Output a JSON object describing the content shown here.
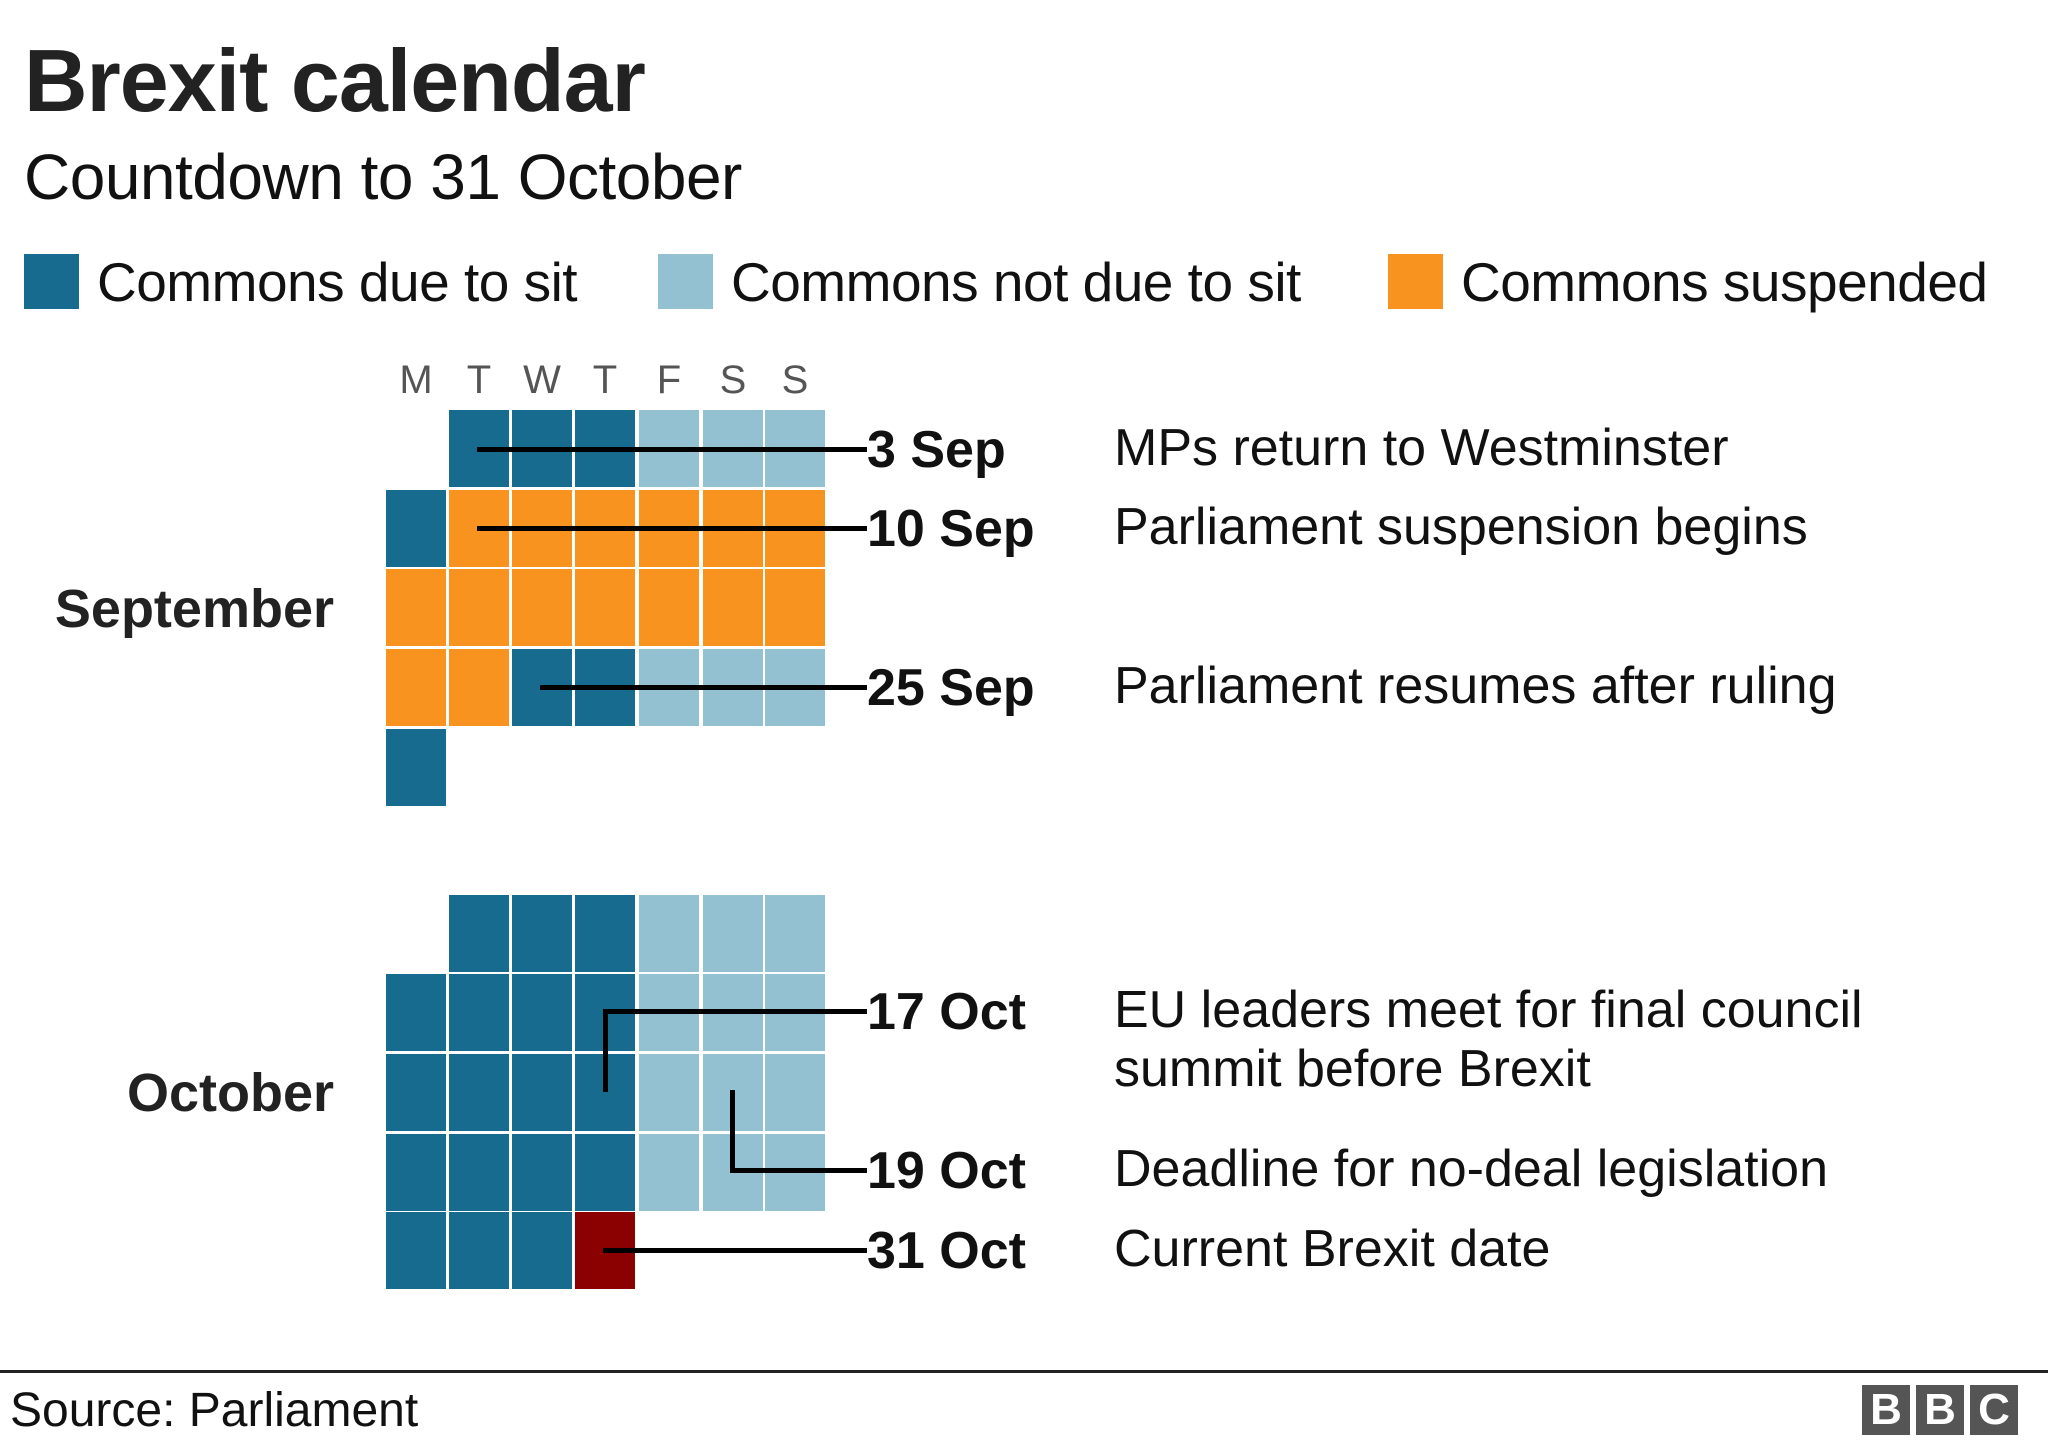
{
  "header": {
    "title": "Brexit calendar",
    "subtitle": "Countdown to 31 October"
  },
  "legend": [
    {
      "label": "Commons due to sit",
      "color": "#176b8f"
    },
    {
      "label": "Commons not due to sit",
      "color": "#94c1d1"
    },
    {
      "label": "Commons suspended",
      "color": "#f7931e"
    }
  ],
  "weekdays": [
    "M",
    "T",
    "W",
    "T",
    "F",
    "S",
    "S"
  ],
  "months": {
    "september": "September",
    "october": "October"
  },
  "annotations": [
    {
      "date": "3 Sep",
      "text": "MPs return to Westminster"
    },
    {
      "date": "10 Sep",
      "text": "Parliament suspension begins"
    },
    {
      "date": "25 Sep",
      "text": "Parliament resumes after ruling"
    },
    {
      "date": "17 Oct",
      "text": "EU leaders meet for final council",
      "text2": "summit before Brexit"
    },
    {
      "date": "19 Oct",
      "text": "Deadline for no-deal legislation"
    },
    {
      "date": "31 Oct",
      "text": "Current Brexit date"
    }
  ],
  "footer": {
    "source": "Source: Parliament",
    "logo": [
      "B",
      "B",
      "C"
    ]
  },
  "chart_data": {
    "type": "heatmap",
    "title": "Brexit calendar",
    "subtitle": "Countdown to 31 October",
    "legend": [
      "Commons due to sit",
      "Commons not due to sit",
      "Commons suspended"
    ],
    "colors": {
      "sit": "#176b8f",
      "not_sit": "#94c1d1",
      "suspended": "#f7931e",
      "brexit_date": "#8b0000"
    },
    "columns": [
      "M",
      "T",
      "W",
      "T",
      "F",
      "S",
      "S"
    ],
    "september": [
      [
        null,
        "sit",
        "sit",
        "sit",
        "not_sit",
        "not_sit",
        "not_sit"
      ],
      [
        "sit",
        "suspended",
        "suspended",
        "suspended",
        "suspended",
        "suspended",
        "suspended"
      ],
      [
        "suspended",
        "suspended",
        "suspended",
        "suspended",
        "suspended",
        "suspended",
        "suspended"
      ],
      [
        "suspended",
        "suspended",
        "sit",
        "sit",
        "not_sit",
        "not_sit",
        "not_sit"
      ],
      [
        "sit",
        null,
        null,
        null,
        null,
        null,
        null
      ]
    ],
    "october": [
      [
        null,
        "sit",
        "sit",
        "sit",
        "not_sit",
        "not_sit",
        "not_sit"
      ],
      [
        "sit",
        "sit",
        "sit",
        "sit",
        "not_sit",
        "not_sit",
        "not_sit"
      ],
      [
        "sit",
        "sit",
        "sit",
        "sit",
        "not_sit",
        "not_sit",
        "not_sit"
      ],
      [
        "sit",
        "sit",
        "sit",
        "sit",
        "not_sit",
        "not_sit",
        "not_sit"
      ],
      [
        "sit",
        "sit",
        "sit",
        "brexit_date",
        null,
        null,
        null
      ]
    ],
    "annotations": [
      {
        "date": "3 Sep",
        "text": "MPs return to Westminster"
      },
      {
        "date": "10 Sep",
        "text": "Parliament suspension begins"
      },
      {
        "date": "25 Sep",
        "text": "Parliament resumes after ruling"
      },
      {
        "date": "17 Oct",
        "text": "EU leaders meet for final council summit before Brexit"
      },
      {
        "date": "19 Oct",
        "text": "Deadline for no-deal legislation"
      },
      {
        "date": "31 Oct",
        "text": "Current Brexit date"
      }
    ],
    "source": "Parliament"
  }
}
